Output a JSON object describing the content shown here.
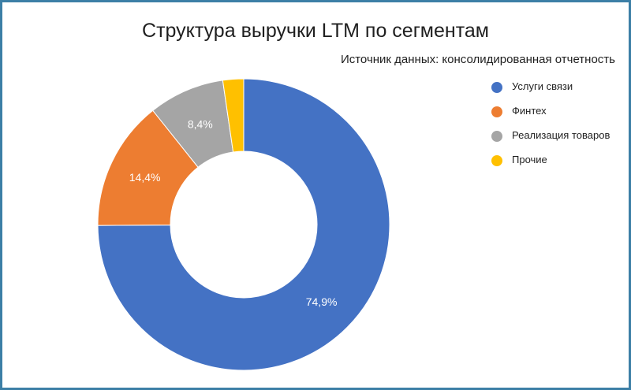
{
  "chart_data": {
    "type": "pie",
    "variant": "donut",
    "title": "Структура выручки LTM по сегментам",
    "subtitle": "Источник данных: консолидированная отчетность",
    "categories": [
      "Услуги связи",
      "Финтех",
      "Реализация товаров",
      "Прочие"
    ],
    "values": [
      74.9,
      14.4,
      8.4,
      2.3
    ],
    "data_labels": [
      "74,9%",
      "14,4%",
      "8,4%",
      ""
    ],
    "colors": [
      "#4472c4",
      "#ed7d31",
      "#a5a5a5",
      "#ffc000"
    ],
    "legend_position": "right"
  }
}
